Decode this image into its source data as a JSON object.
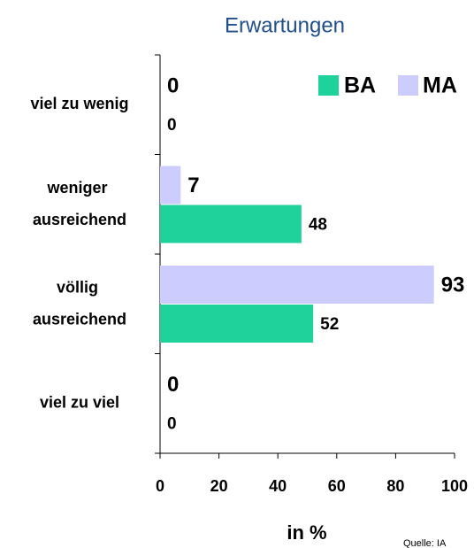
{
  "chart_data": {
    "type": "hbar",
    "title": "Erwartungen",
    "categories": [
      "viel zu wenig",
      "weniger ausreichend",
      "völlig ausreichend",
      "viel zu viel"
    ],
    "series": [
      {
        "name": "MA",
        "color": "#ccccff",
        "values": [
          0,
          7,
          93,
          0
        ]
      },
      {
        "name": "BA",
        "color": "#1fd19a",
        "values": [
          0,
          48,
          52,
          0
        ]
      }
    ],
    "xlim": [
      0,
      100
    ],
    "xticks": [
      0,
      20,
      40,
      60,
      80,
      100
    ],
    "xlabel": "in %",
    "source": "Quelle: IA"
  }
}
